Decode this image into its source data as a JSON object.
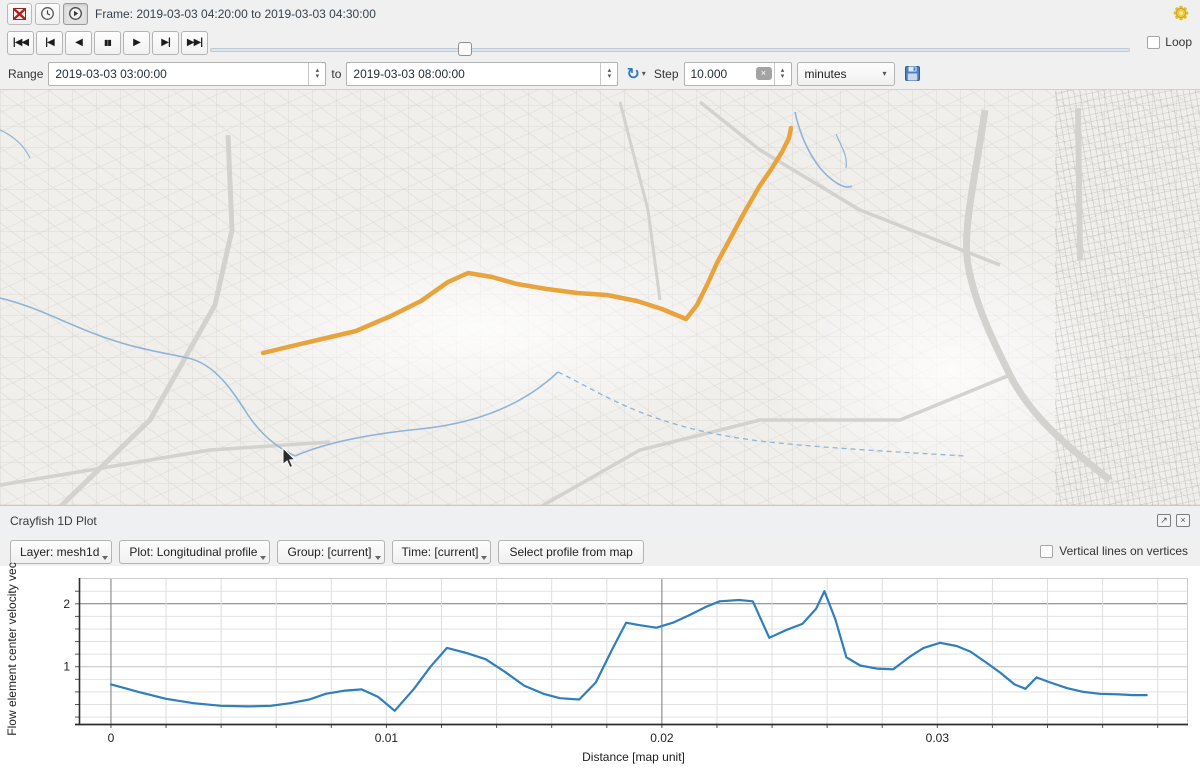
{
  "timebar": {
    "frame_label": "Frame: 2019-03-03 04:20:00 to 2019-03-03 04:30:00"
  },
  "transport": {
    "buttons": [
      {
        "name": "skip-to-start",
        "glyph": "|◀◀"
      },
      {
        "name": "previous-frame",
        "glyph": "|◀"
      },
      {
        "name": "play-backward",
        "glyph": "◀"
      },
      {
        "name": "pause",
        "glyph": "▮▮"
      },
      {
        "name": "play-forward",
        "glyph": "▶"
      },
      {
        "name": "next-frame",
        "glyph": "▶|"
      },
      {
        "name": "skip-to-end",
        "glyph": "▶▶|"
      }
    ],
    "slider_pct": 27,
    "loop_label": "Loop",
    "loop_checked": false
  },
  "range_row": {
    "range_label": "Range",
    "from_value": "2019-03-03 03:00:00",
    "to_label": "to",
    "to_value": "2019-03-03 08:00:00",
    "step_label": "Step",
    "step_value": "10.000",
    "unit_value": "minutes"
  },
  "icons": {
    "refresh": "↻",
    "dropdown": "▾",
    "spin_up": "▴",
    "spin_down": "▾",
    "clear": "×",
    "float_panel": "↗",
    "close_panel": "×"
  },
  "panel": {
    "title": "Crayfish 1D Plot",
    "layer_button": "Layer: mesh1d",
    "plot_button": "Plot: Longitudinal profile",
    "group_button": "Group: [current]",
    "time_button": "Time: [current]",
    "select_button": "Select profile from map",
    "vertices_checkbox_label": "Vertical lines on vertices",
    "vertices_checked": false
  },
  "map": {
    "bg_color": "#f1efec",
    "route_color": "#e8a33d",
    "river_color": "#8fb4d8",
    "road_color": "#d6d6d6"
  },
  "chart_data": {
    "type": "line",
    "title": "",
    "xlabel": "Distance [map unit]",
    "ylabel": "Flow element center velocity vec",
    "xlim": [
      -0.00116,
      0.0391
    ],
    "ylim": [
      0.09,
      2.41
    ],
    "xticks": [
      0,
      0.01,
      0.02,
      0.03
    ],
    "xtick_labels": [
      "0",
      "0.01",
      "0.02",
      "0.03"
    ],
    "yticks": [
      1,
      2
    ],
    "x_major_grid": [
      0,
      0.02
    ],
    "y_major_grid": [
      2
    ],
    "x_minor_step": 0.002,
    "y_minor_step": 0.2,
    "grid": true,
    "legend": "none",
    "line_color": "#2f7ebd",
    "series": [
      {
        "name": "Flow element center velocity",
        "points": [
          [
            0.0,
            0.72
          ],
          [
            0.001,
            0.6
          ],
          [
            0.002,
            0.49
          ],
          [
            0.003,
            0.42
          ],
          [
            0.004,
            0.38
          ],
          [
            0.005,
            0.37
          ],
          [
            0.0058,
            0.38
          ],
          [
            0.0065,
            0.42
          ],
          [
            0.0072,
            0.48
          ],
          [
            0.0078,
            0.57
          ],
          [
            0.0085,
            0.62
          ],
          [
            0.0091,
            0.64
          ],
          [
            0.0097,
            0.52
          ],
          [
            0.0103,
            0.3
          ],
          [
            0.011,
            0.65
          ],
          [
            0.0116,
            1.0
          ],
          [
            0.0122,
            1.3
          ],
          [
            0.0129,
            1.22
          ],
          [
            0.0136,
            1.12
          ],
          [
            0.0143,
            0.92
          ],
          [
            0.015,
            0.7
          ],
          [
            0.0157,
            0.57
          ],
          [
            0.0163,
            0.5
          ],
          [
            0.017,
            0.48
          ],
          [
            0.0176,
            0.75
          ],
          [
            0.0182,
            1.28
          ],
          [
            0.0187,
            1.7
          ],
          [
            0.0192,
            1.66
          ],
          [
            0.0198,
            1.62
          ],
          [
            0.0204,
            1.7
          ],
          [
            0.021,
            1.82
          ],
          [
            0.0216,
            1.95
          ],
          [
            0.0221,
            2.04
          ],
          [
            0.0228,
            2.06
          ],
          [
            0.0233,
            2.04
          ],
          [
            0.0239,
            1.46
          ],
          [
            0.0245,
            1.58
          ],
          [
            0.0251,
            1.68
          ],
          [
            0.0256,
            1.92
          ],
          [
            0.0259,
            2.2
          ],
          [
            0.0263,
            1.75
          ],
          [
            0.0267,
            1.15
          ],
          [
            0.0272,
            1.02
          ],
          [
            0.0278,
            0.97
          ],
          [
            0.0284,
            0.96
          ],
          [
            0.029,
            1.16
          ],
          [
            0.0295,
            1.3
          ],
          [
            0.0301,
            1.38
          ],
          [
            0.0307,
            1.33
          ],
          [
            0.0312,
            1.24
          ],
          [
            0.0318,
            1.06
          ],
          [
            0.0323,
            0.9
          ],
          [
            0.0328,
            0.72
          ],
          [
            0.0332,
            0.65
          ],
          [
            0.0336,
            0.83
          ],
          [
            0.0341,
            0.75
          ],
          [
            0.0347,
            0.66
          ],
          [
            0.0353,
            0.6
          ],
          [
            0.0359,
            0.57
          ],
          [
            0.0366,
            0.56
          ],
          [
            0.0371,
            0.55
          ],
          [
            0.0376,
            0.55
          ]
        ]
      }
    ]
  }
}
